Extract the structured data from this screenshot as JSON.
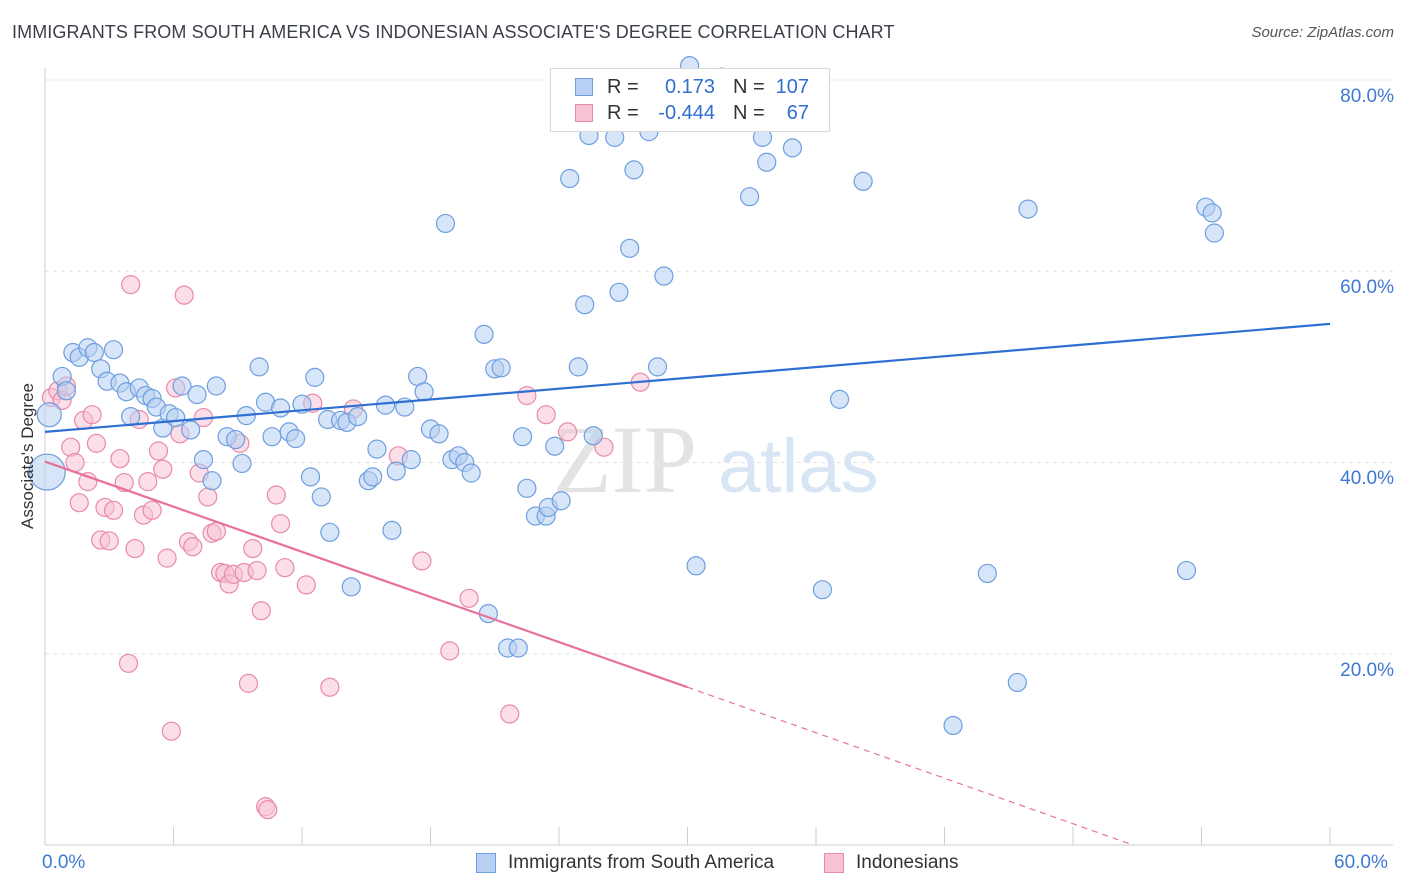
{
  "title": "IMMIGRANTS FROM SOUTH AMERICA VS INDONESIAN ASSOCIATE'S DEGREE CORRELATION CHART",
  "source": "Source: ZipAtlas.com",
  "watermark": {
    "part1": "ZIP",
    "part2": "atlas"
  },
  "legend": {
    "rows": [
      {
        "r_label": "R =",
        "r_value": "0.173",
        "n_label": "N =",
        "n_value": "107"
      },
      {
        "r_label": "R =",
        "r_value": "-0.444",
        "n_label": "N =",
        "n_value": "67"
      }
    ]
  },
  "colors": {
    "blue_fill": "#b7cff2",
    "blue_stroke": "#6e9ee0",
    "blue_line": "#2f6fd2",
    "pink_fill": "#f8c3d3",
    "pink_stroke": "#e88aa8",
    "pink_line": "#e8709a",
    "tick": "#3f79d4",
    "grid": "#e2e2e2"
  },
  "chart_data": {
    "type": "scatter",
    "title": "IMMIGRANTS FROM SOUTH AMERICA VS INDONESIAN ASSOCIATE'S DEGREE CORRELATION CHART",
    "xlabel": "",
    "ylabel": "Associate's Degree",
    "xlim": [
      0,
      60
    ],
    "ylim": [
      0,
      80
    ],
    "x_tick_labels": [
      "0.0%",
      "60.0%"
    ],
    "y_ticks": [
      20,
      40,
      60,
      80
    ],
    "y_tick_labels": [
      "20.0%",
      "40.0%",
      "60.0%",
      "80.0%"
    ],
    "grid": true,
    "series": [
      {
        "name": "Immigrants from South America",
        "color": "#b7cff2",
        "trend": {
          "x": [
            0,
            60
          ],
          "y": [
            43.2,
            54.5
          ],
          "dashed_from": null
        },
        "points": [
          [
            0.1,
            39.0
          ],
          [
            0.2,
            45.0
          ],
          [
            0.8,
            49.0
          ],
          [
            1.0,
            47.5
          ],
          [
            1.3,
            51.5
          ],
          [
            1.6,
            51.0
          ],
          [
            2.0,
            52.0
          ],
          [
            2.3,
            51.5
          ],
          [
            2.6,
            49.8
          ],
          [
            2.9,
            48.5
          ],
          [
            3.2,
            51.8
          ],
          [
            3.5,
            48.3
          ],
          [
            3.8,
            47.4
          ],
          [
            4.0,
            44.8
          ],
          [
            4.4,
            47.8
          ],
          [
            4.7,
            47.0
          ],
          [
            5.0,
            46.7
          ],
          [
            5.2,
            45.8
          ],
          [
            5.5,
            43.6
          ],
          [
            5.8,
            45.1
          ],
          [
            6.1,
            44.7
          ],
          [
            6.4,
            48.0
          ],
          [
            6.8,
            43.4
          ],
          [
            7.1,
            47.1
          ],
          [
            7.4,
            40.3
          ],
          [
            7.8,
            38.1
          ],
          [
            8.0,
            48.0
          ],
          [
            8.5,
            42.7
          ],
          [
            8.9,
            42.4
          ],
          [
            9.2,
            39.9
          ],
          [
            9.4,
            44.9
          ],
          [
            10.0,
            50.0
          ],
          [
            10.3,
            46.3
          ],
          [
            10.6,
            42.7
          ],
          [
            11.0,
            45.7
          ],
          [
            11.4,
            43.2
          ],
          [
            11.7,
            42.5
          ],
          [
            12.0,
            46.1
          ],
          [
            12.4,
            38.5
          ],
          [
            12.6,
            48.9
          ],
          [
            12.9,
            36.4
          ],
          [
            13.2,
            44.5
          ],
          [
            13.3,
            32.7
          ],
          [
            13.8,
            44.4
          ],
          [
            14.1,
            44.2
          ],
          [
            14.3,
            27.0
          ],
          [
            14.6,
            44.8
          ],
          [
            15.1,
            38.1
          ],
          [
            15.3,
            38.5
          ],
          [
            15.5,
            41.4
          ],
          [
            15.9,
            46.0
          ],
          [
            16.2,
            32.9
          ],
          [
            16.4,
            39.1
          ],
          [
            16.8,
            45.8
          ],
          [
            17.1,
            40.3
          ],
          [
            17.4,
            49.0
          ],
          [
            17.7,
            47.4
          ],
          [
            18.0,
            43.5
          ],
          [
            18.4,
            43.0
          ],
          [
            18.7,
            65.0
          ],
          [
            19.0,
            40.3
          ],
          [
            19.3,
            40.7
          ],
          [
            19.6,
            40.0
          ],
          [
            19.9,
            38.9
          ],
          [
            20.5,
            53.4
          ],
          [
            20.7,
            24.2
          ],
          [
            21.0,
            49.8
          ],
          [
            21.3,
            49.9
          ],
          [
            21.6,
            20.6
          ],
          [
            22.1,
            20.6
          ],
          [
            22.3,
            42.7
          ],
          [
            22.5,
            37.3
          ],
          [
            22.9,
            34.4
          ],
          [
            23.4,
            34.4
          ],
          [
            23.5,
            35.3
          ],
          [
            23.8,
            41.7
          ],
          [
            24.1,
            36.0
          ],
          [
            24.5,
            69.7
          ],
          [
            24.9,
            50.0
          ],
          [
            25.2,
            56.5
          ],
          [
            25.4,
            74.2
          ],
          [
            25.6,
            42.8
          ],
          [
            26.6,
            74.0
          ],
          [
            26.8,
            57.8
          ],
          [
            27.3,
            62.4
          ],
          [
            27.5,
            70.6
          ],
          [
            28.2,
            74.6
          ],
          [
            28.6,
            50.0
          ],
          [
            28.9,
            59.5
          ],
          [
            30.1,
            81.5
          ],
          [
            30.4,
            29.2
          ],
          [
            31.6,
            80.3
          ],
          [
            32.9,
            67.8
          ],
          [
            33.5,
            74.0
          ],
          [
            33.7,
            71.4
          ],
          [
            34.9,
            72.9
          ],
          [
            36.3,
            26.7
          ],
          [
            37.1,
            46.6
          ],
          [
            38.2,
            69.4
          ],
          [
            42.4,
            12.5
          ],
          [
            44.0,
            28.4
          ],
          [
            45.4,
            17.0
          ],
          [
            45.9,
            66.5
          ],
          [
            53.3,
            28.7
          ],
          [
            54.2,
            66.7
          ],
          [
            54.6,
            64.0
          ],
          [
            54.5,
            66.1
          ]
        ]
      },
      {
        "name": "Indonesians",
        "color": "#f8c3d3",
        "trend": {
          "x": [
            0,
            30,
            60
          ],
          "y": [
            40.1,
            16.5,
            -7.3
          ],
          "dashed_from": 30
        },
        "points": [
          [
            0.3,
            46.8
          ],
          [
            0.6,
            47.5
          ],
          [
            0.8,
            46.5
          ],
          [
            1.0,
            48.0
          ],
          [
            1.2,
            41.6
          ],
          [
            1.4,
            40.0
          ],
          [
            1.6,
            35.8
          ],
          [
            1.8,
            44.4
          ],
          [
            2.0,
            38.0
          ],
          [
            2.2,
            45.0
          ],
          [
            2.4,
            42.0
          ],
          [
            2.6,
            31.9
          ],
          [
            2.8,
            35.3
          ],
          [
            3.0,
            31.8
          ],
          [
            3.2,
            35.0
          ],
          [
            3.5,
            40.4
          ],
          [
            3.7,
            37.9
          ],
          [
            3.9,
            19.0
          ],
          [
            4.0,
            58.6
          ],
          [
            4.2,
            31.0
          ],
          [
            4.4,
            44.5
          ],
          [
            4.6,
            34.5
          ],
          [
            4.8,
            38.0
          ],
          [
            5.0,
            35.0
          ],
          [
            5.3,
            41.2
          ],
          [
            5.5,
            39.3
          ],
          [
            5.7,
            30.0
          ],
          [
            5.9,
            11.9
          ],
          [
            6.1,
            47.8
          ],
          [
            6.3,
            43.0
          ],
          [
            6.5,
            57.5
          ],
          [
            6.7,
            31.7
          ],
          [
            6.9,
            31.2
          ],
          [
            7.2,
            38.9
          ],
          [
            7.4,
            44.7
          ],
          [
            7.6,
            36.4
          ],
          [
            7.8,
            32.6
          ],
          [
            8.0,
            32.8
          ],
          [
            8.2,
            28.5
          ],
          [
            8.4,
            28.4
          ],
          [
            8.6,
            27.3
          ],
          [
            8.8,
            28.3
          ],
          [
            9.1,
            42.0
          ],
          [
            9.3,
            28.5
          ],
          [
            9.5,
            16.9
          ],
          [
            9.7,
            31.0
          ],
          [
            9.9,
            28.7
          ],
          [
            10.1,
            24.5
          ],
          [
            10.3,
            4.0
          ],
          [
            10.4,
            3.7
          ],
          [
            10.8,
            36.6
          ],
          [
            11.0,
            33.6
          ],
          [
            11.2,
            29.0
          ],
          [
            12.2,
            27.2
          ],
          [
            12.5,
            46.2
          ],
          [
            13.3,
            16.5
          ],
          [
            14.4,
            45.6
          ],
          [
            16.5,
            40.7
          ],
          [
            17.6,
            29.7
          ],
          [
            18.9,
            20.3
          ],
          [
            19.8,
            25.8
          ],
          [
            21.7,
            13.7
          ],
          [
            22.5,
            47.0
          ],
          [
            23.4,
            45.0
          ],
          [
            24.4,
            43.2
          ],
          [
            26.1,
            41.6
          ],
          [
            27.8,
            48.4
          ]
        ]
      }
    ]
  }
}
